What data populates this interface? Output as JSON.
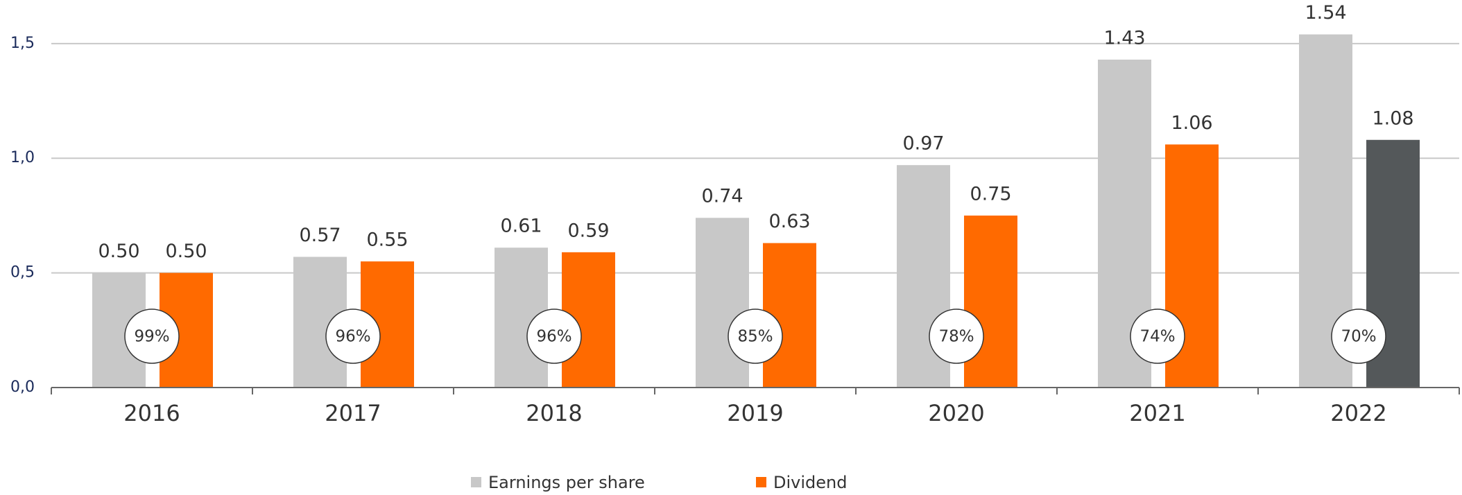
{
  "chart_data": {
    "type": "bar",
    "categories": [
      "2016",
      "2017",
      "2018",
      "2019",
      "2020",
      "2021",
      "2022"
    ],
    "series": [
      {
        "name": "Earnings per share",
        "color": "#c8c8c8",
        "values": [
          0.5,
          0.57,
          0.61,
          0.74,
          0.97,
          1.43,
          1.54
        ],
        "value_labels": [
          "0.50",
          "0.57",
          "0.61",
          "0.74",
          "0.97",
          "1.43",
          "1.54"
        ]
      },
      {
        "name": "Dividend",
        "color": "#ff6a00",
        "colors": [
          "#ff6a00",
          "#ff6a00",
          "#ff6a00",
          "#ff6a00",
          "#ff6a00",
          "#ff6a00",
          "#54585a"
        ],
        "values": [
          0.5,
          0.55,
          0.59,
          0.63,
          0.75,
          1.06,
          1.08
        ],
        "value_labels": [
          "0.50",
          "0.55",
          "0.59",
          "0.63",
          "0.75",
          "1.06",
          "1.08"
        ]
      }
    ],
    "payout_ratio": {
      "values": [
        99,
        96,
        96,
        85,
        78,
        74,
        70
      ],
      "value_labels": [
        "99%",
        "96%",
        "96%",
        "85%",
        "78%",
        "74%",
        "70%"
      ]
    },
    "ylim": [
      0,
      1.69
    ],
    "yticks": [
      {
        "value": 0,
        "label": "0,0"
      },
      {
        "value": 0.5,
        "label": "0,5"
      },
      {
        "value": 1,
        "label": "1,0"
      },
      {
        "value": 1.5,
        "label": "1,5"
      }
    ],
    "grid": true
  }
}
